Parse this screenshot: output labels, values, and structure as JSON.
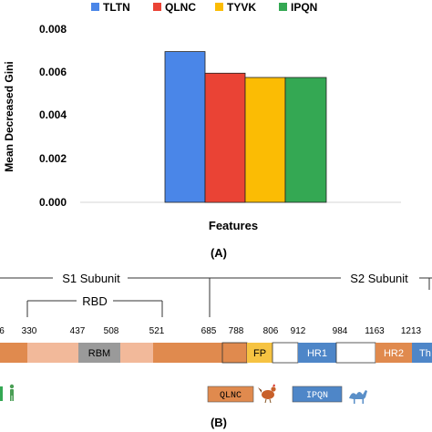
{
  "chart_data": [
    {
      "type": "bar",
      "title": "",
      "xlabel": "Features",
      "ylabel": "Mean Decreased Gini",
      "ylim": [
        0,
        0.008
      ],
      "yticks": [
        "0.000",
        "0.002",
        "0.004",
        "0.006",
        "0.008"
      ],
      "legend_position": "top",
      "series": [
        {
          "name": "TLTN",
          "color": "#4A86E8",
          "values": [
            0.007
          ]
        },
        {
          "name": "QLNC",
          "color": "#EA4335",
          "values": [
            0.006
          ]
        },
        {
          "name": "TYVK",
          "color": "#FBBC04",
          "values": [
            0.0058
          ]
        },
        {
          "name": "IPQN",
          "color": "#34A853",
          "values": [
            0.0058
          ]
        }
      ],
      "panel_label": "(A)"
    },
    {
      "type": "diagram",
      "s1_label": "S1 Subunit",
      "s2_label": "S2 Subunit",
      "rbd_label": "RBD",
      "positions": [
        "6",
        "330",
        "437",
        "508",
        "521",
        "685",
        "788",
        "806",
        "912",
        "984",
        "1163",
        "1213"
      ],
      "domains": [
        {
          "label": "",
          "color": "#E08A4E"
        },
        {
          "label": "",
          "color": "#F2B99A"
        },
        {
          "label": "RBM",
          "color": "#9A9A9A"
        },
        {
          "label": "",
          "color": "#F2B99A"
        },
        {
          "label": "",
          "color": "#E08A4E"
        },
        {
          "label": "",
          "color": "#E08A4E"
        },
        {
          "label": "FP",
          "color": "#F6C342"
        },
        {
          "label": "",
          "color": "#FFFFFF"
        },
        {
          "label": "HR1",
          "color": "#4E86C8"
        },
        {
          "label": "",
          "color": "#FFFFFF"
        },
        {
          "label": "HR2",
          "color": "#E08A4E"
        },
        {
          "label": "Th",
          "color": "#4E86C8"
        }
      ],
      "motif_tags": [
        {
          "label": "QLNC",
          "color": "#E08A4E"
        },
        {
          "label": "IPQN",
          "color": "#4E86C8"
        }
      ],
      "panel_label": "(B)"
    }
  ]
}
